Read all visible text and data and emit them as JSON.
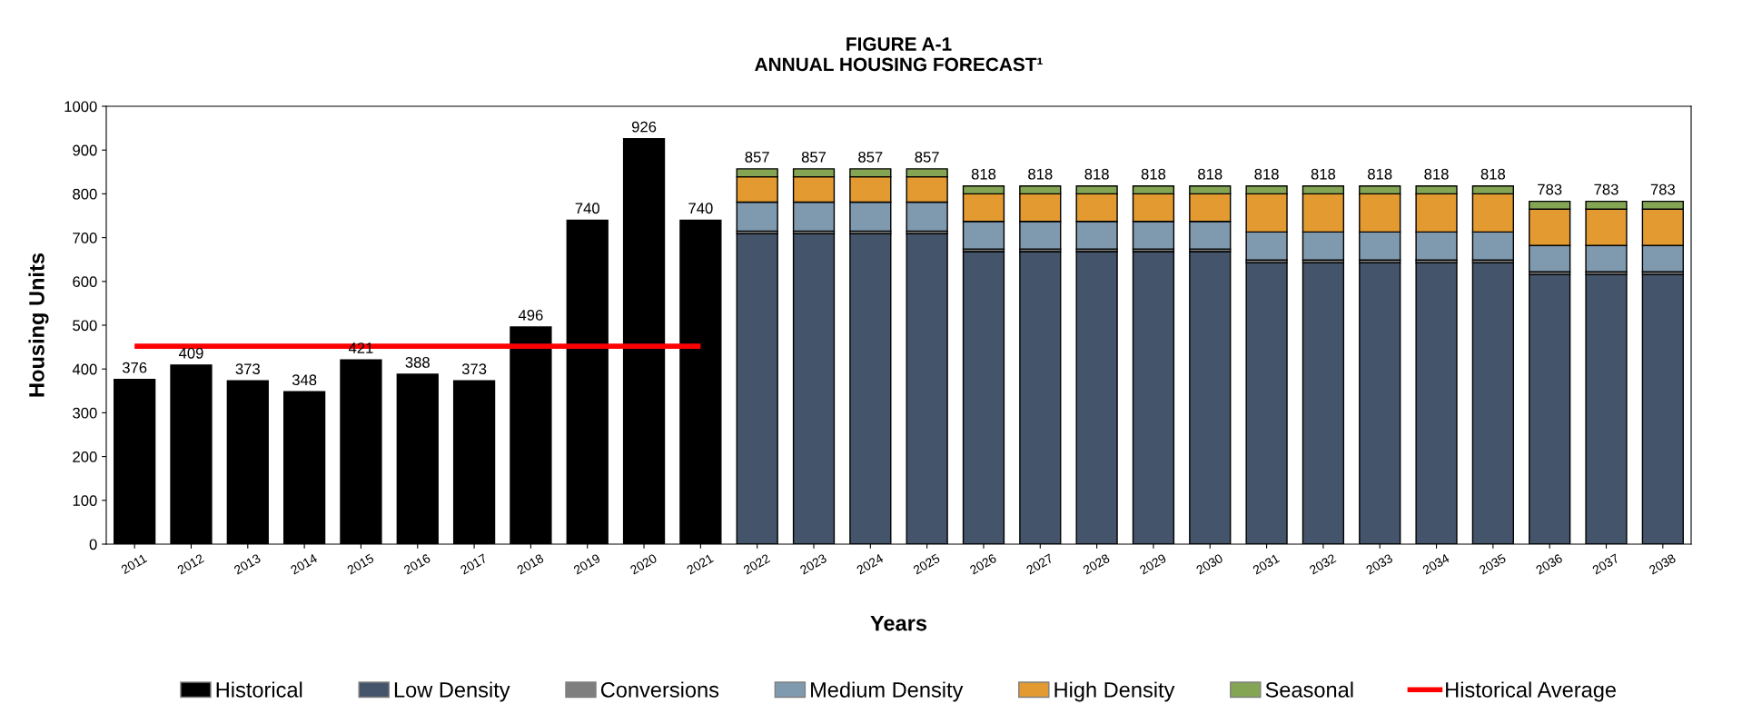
{
  "chart_data": {
    "type": "bar",
    "title": "FIGURE A-1\nANNUAL HOUSING FORECAST¹",
    "xlabel": "Years",
    "ylabel": "Housing Units",
    "categories": [
      "2011",
      "2012",
      "2013",
      "2014",
      "2015",
      "2016",
      "2017",
      "2018",
      "2019",
      "2020",
      "2021",
      "2022",
      "2023",
      "2024",
      "2025",
      "2026",
      "2027",
      "2028",
      "2029",
      "2030",
      "2031",
      "2032",
      "2033",
      "2034",
      "2035",
      "2036",
      "2037",
      "2038"
    ],
    "stacked": true,
    "series": [
      {
        "name": "Historical",
        "color": "#000000",
        "values": [
          376,
          409,
          373,
          348,
          421,
          388,
          373,
          496,
          740,
          926,
          740,
          null,
          null,
          null,
          null,
          null,
          null,
          null,
          null,
          null,
          null,
          null,
          null,
          null,
          null,
          null,
          null,
          null
        ]
      },
      {
        "name": "Low Density",
        "color": "#44546a",
        "values": [
          null,
          null,
          null,
          null,
          null,
          null,
          null,
          null,
          null,
          null,
          null,
          709,
          709,
          709,
          709,
          668,
          668,
          668,
          668,
          668,
          643,
          643,
          643,
          643,
          643,
          616,
          616,
          616
        ]
      },
      {
        "name": "Conversions",
        "color": "#7f7f7f",
        "values": [
          null,
          null,
          null,
          null,
          null,
          null,
          null,
          null,
          null,
          null,
          null,
          6,
          6,
          6,
          6,
          6,
          6,
          6,
          6,
          6,
          6,
          6,
          6,
          6,
          6,
          6,
          6,
          6
        ]
      },
      {
        "name": "Medium Density",
        "color": "#7f9aae",
        "values": [
          null,
          null,
          null,
          null,
          null,
          null,
          null,
          null,
          null,
          null,
          null,
          66,
          66,
          66,
          66,
          63,
          63,
          63,
          63,
          63,
          64,
          64,
          64,
          64,
          64,
          60,
          60,
          60
        ]
      },
      {
        "name": "High Density",
        "color": "#e39a31",
        "values": [
          null,
          null,
          null,
          null,
          null,
          null,
          null,
          null,
          null,
          null,
          null,
          58,
          58,
          58,
          58,
          63,
          63,
          63,
          63,
          63,
          87,
          87,
          87,
          87,
          87,
          83,
          83,
          83
        ]
      },
      {
        "name": "Seasonal",
        "color": "#84a553",
        "values": [
          null,
          null,
          null,
          null,
          null,
          null,
          null,
          null,
          null,
          null,
          null,
          18,
          18,
          18,
          18,
          18,
          18,
          18,
          18,
          18,
          18,
          18,
          18,
          18,
          18,
          18,
          18,
          18
        ]
      },
      {
        "name": "Historical Average",
        "type": "line",
        "color": "#ff0000",
        "values": [
          452,
          452,
          452,
          452,
          452,
          452,
          452,
          452,
          452,
          452,
          452,
          null,
          null,
          null,
          null,
          null,
          null,
          null,
          null,
          null,
          null,
          null,
          null,
          null,
          null,
          null,
          null,
          null
        ]
      }
    ],
    "totals": [
      "376",
      "409",
      "373",
      "348",
      "421",
      "388",
      "373",
      "496",
      "740",
      "926",
      "740",
      "857",
      "857",
      "857",
      "857",
      "818",
      "818",
      "818",
      "818",
      "818",
      "818",
      "818",
      "818",
      "818",
      "818",
      "783",
      "783",
      "783"
    ],
    "ylim": [
      0,
      1000
    ],
    "yticks": [
      0,
      100,
      200,
      300,
      400,
      500,
      600,
      700,
      800,
      900,
      1000
    ],
    "grid": false,
    "legend": "bottom"
  }
}
